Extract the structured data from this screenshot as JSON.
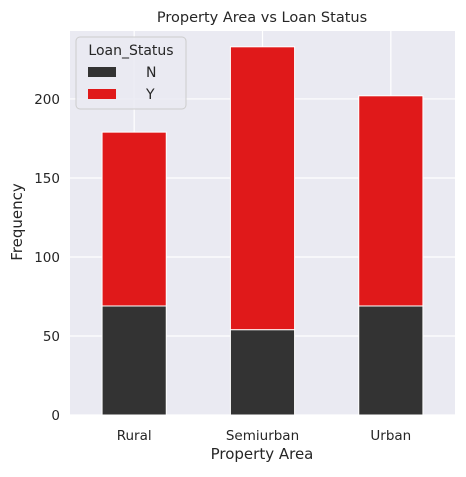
{
  "chart_data": {
    "type": "bar",
    "stacked": true,
    "title": "Property Area vs Loan Status",
    "xlabel": "Property Area",
    "ylabel": "Frequency",
    "categories": [
      "Rural",
      "Semiurban",
      "Urban"
    ],
    "series": [
      {
        "name": "N",
        "values": [
          69,
          54,
          69
        ],
        "color": "#333333"
      },
      {
        "name": "Y",
        "values": [
          110,
          179,
          133
        ],
        "color": "#e0191a"
      }
    ],
    "ylim": [
      0,
      243
    ],
    "yticks": [
      0,
      50,
      100,
      150,
      200
    ],
    "grid": true,
    "legend": {
      "title": "Loan_Status",
      "placement": "top-left"
    },
    "background_color": "#eaeaf2",
    "grid_color": "#ffffff"
  }
}
